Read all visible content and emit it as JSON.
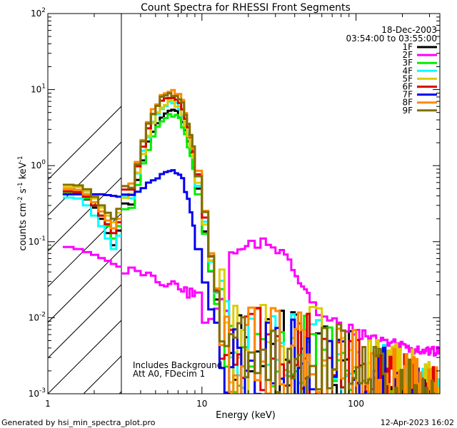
{
  "chart_data": {
    "type": "line",
    "title": "Count Spectra for RHESSI Front Segments",
    "xlabel": "Energy (keV)",
    "ylabel_main": "counts cm",
    "ylabel_sup1": "-2",
    "ylabel_mid": " s",
    "ylabel_sup2": "-1",
    "ylabel_end": " keV",
    "ylabel_sup3": "-1",
    "x_scale": "log",
    "y_scale": "log",
    "xlim": [
      1,
      350
    ],
    "ylim": [
      0.001,
      100
    ],
    "x_ticks": [
      {
        "v": 1,
        "label": "1"
      },
      {
        "v": 10,
        "label": "10"
      },
      {
        "v": 100,
        "label": "100"
      }
    ],
    "y_ticks": [
      {
        "v": 0.001,
        "base": "10",
        "exp": "-3"
      },
      {
        "v": 0.01,
        "base": "10",
        "exp": "-2"
      },
      {
        "v": 0.1,
        "base": "10",
        "exp": "-1"
      },
      {
        "v": 1,
        "base": "10",
        "exp": "0"
      },
      {
        "v": 10,
        "base": "10",
        "exp": "1"
      },
      {
        "v": 100,
        "base": "10",
        "exp": "2"
      }
    ],
    "excluded_region_max_kev": 3,
    "date": "18-Dec-2003",
    "time_range": "03:54:00 to 03:55:00",
    "annotations": [
      "Includes Background",
      "Att A0, FDecim 1"
    ],
    "legend_position": "top-right",
    "energy_edges_low_kev": [
      3,
      9,
      20,
      50
    ],
    "energy_steps_kev": [
      0.333,
      1,
      2,
      5
    ],
    "series": [
      {
        "name": "1F",
        "color": "#000000",
        "low": [
          0.42,
          0.42,
          0.36,
          0.28,
          0.2,
          0.13,
          0.09,
          0.14
        ],
        "peak": 5.3,
        "bg_scale": 1.0,
        "tail_scale": 1.0
      },
      {
        "name": "2F",
        "color": "#ff00ff",
        "low": [
          0.085,
          0.08,
          0.073,
          0.067,
          0.061,
          0.056,
          0.051,
          0.047
        ],
        "peak": 0,
        "bg_scale": 1.0,
        "tail_scale": 1.0
      },
      {
        "name": "3F",
        "color": "#00ee00",
        "low": [
          0.45,
          0.44,
          0.37,
          0.3,
          0.22,
          0.16,
          0.11,
          0.16
        ],
        "peak": 4.6,
        "bg_scale": 1.0,
        "tail_scale": 1.0
      },
      {
        "name": "4F",
        "color": "#00ffff",
        "low": [
          0.38,
          0.37,
          0.3,
          0.22,
          0.16,
          0.11,
          0.08,
          0.12
        ],
        "peak": 6.6,
        "bg_scale": 1.0,
        "tail_scale": 1.0
      },
      {
        "name": "5F",
        "color": "#ddcc00",
        "low": [
          0.52,
          0.52,
          0.46,
          0.37,
          0.28,
          0.22,
          0.18,
          0.24
        ],
        "peak": 6.8,
        "bg_scale": 1.0,
        "tail_scale": 1.25
      },
      {
        "name": "6F",
        "color": "#dd0000",
        "low": [
          0.46,
          0.45,
          0.39,
          0.3,
          0.22,
          0.17,
          0.13,
          0.18
        ],
        "peak": 8.3,
        "bg_scale": 1.0,
        "tail_scale": 1.0
      },
      {
        "name": "7F",
        "color": "#0000ee",
        "low": [
          0.42,
          0.42,
          0.42,
          0.42,
          0.42,
          0.41,
          0.4,
          0.39
        ],
        "peak": 0.88,
        "bg_scale": 1.0,
        "tail_scale": 0.9
      },
      {
        "name": "8F",
        "color": "#ff8800",
        "low": [
          0.49,
          0.48,
          0.42,
          0.33,
          0.25,
          0.19,
          0.15,
          0.2
        ],
        "peak": 9.6,
        "bg_scale": 1.0,
        "tail_scale": 1.05
      },
      {
        "name": "9F",
        "color": "#807000",
        "low": [
          0.56,
          0.55,
          0.49,
          0.39,
          0.3,
          0.24,
          0.2,
          0.27
        ],
        "peak": 9.0,
        "bg_scale": 1.0,
        "tail_scale": 1.0
      }
    ]
  },
  "footer": {
    "generated_by": "Generated by hsi_min_spectra_plot.pro",
    "timestamp": "12-Apr-2023 16:02"
  }
}
